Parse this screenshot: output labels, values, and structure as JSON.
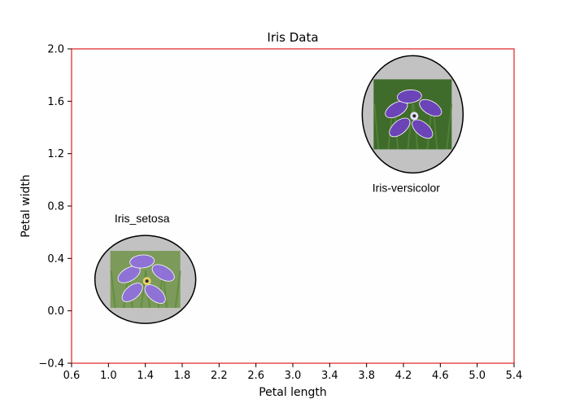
{
  "chart_data": {
    "type": "scatter",
    "title": "Iris Data",
    "xlabel": "Petal length",
    "ylabel": "Petal width",
    "xlim": [
      0.6,
      5.4
    ],
    "ylim": [
      -0.4,
      2.0
    ],
    "xticks": [
      "0.6",
      "1.0",
      "1.4",
      "1.8",
      "2.2",
      "2.6",
      "3.0",
      "3.4",
      "3.8",
      "4.2",
      "4.6",
      "5.0",
      "5.4"
    ],
    "yticks": [
      "−0.4",
      "0.0",
      "0.4",
      "0.8",
      "1.2",
      "1.6",
      "2.0"
    ],
    "frame_color": "#e02020",
    "grid": false,
    "points": [
      {
        "label": "Iris_setosa",
        "x": 1.4,
        "y": 0.24,
        "marker": "flower-image-in-ellipse",
        "image_colors": {
          "background": "#7c9a5a",
          "petal": "#8f72d6",
          "center": "#e6cf6a"
        }
      },
      {
        "label": "Iris-versicolor",
        "x": 4.3,
        "y": 1.5,
        "marker": "flower-image-in-ellipse",
        "image_colors": {
          "background": "#3f6b2b",
          "petal": "#6b44b8",
          "center": "#e8e0ff"
        }
      }
    ]
  }
}
